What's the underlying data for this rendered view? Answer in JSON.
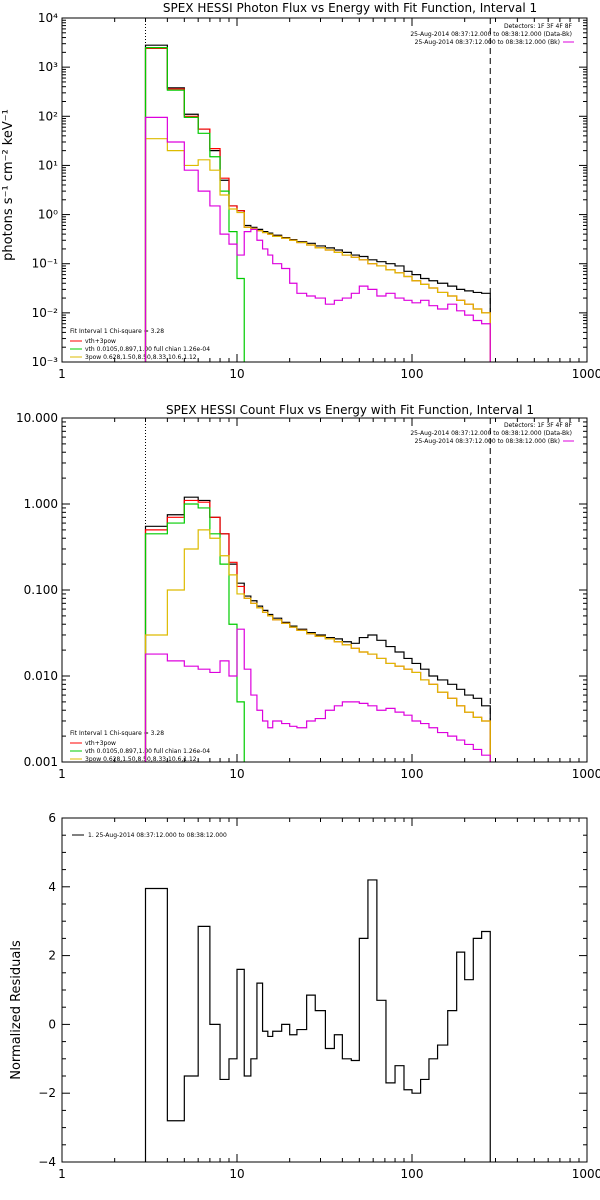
{
  "chart_data": [
    {
      "type": "line",
      "title": "SPEX HESSI Photon Flux vs Energy with Fit Function, Interval 1",
      "xlabel": "",
      "ylabel": "photons s⁻¹ cm⁻² keV⁻¹",
      "xscale": "log",
      "yscale": "log",
      "xlim": [
        1,
        1000
      ],
      "ylim": [
        0.001,
        10000
      ],
      "xticklabels": [
        "1",
        "10",
        "100",
        "1000"
      ],
      "yticklabels": [
        "10⁻³",
        "10⁻²",
        "10⁻¹",
        "10⁰",
        "10¹",
        "10²",
        "10³",
        "10⁴"
      ],
      "header": [
        "Detectors: 1F 3F 4F 8F",
        "25-Aug-2014 08:37:12.000 to 08:38:12.000 (Data-Bk)",
        "25-Aug-2014 08:37:12.000 to 08:38:12.000 (Bk)"
      ],
      "legend_title": "Fit Interval 1    Chi-square = 3.28",
      "legend": [
        "vth+3pow",
        "vth 0.0105,0.897,1.00  full chian 1.26e-04",
        "3pow 0.628,1.50,8.50,8.33,10.6,1.12"
      ],
      "range_markers": [
        3,
        280
      ],
      "edges": [
        3,
        4,
        5,
        6,
        7,
        8,
        9,
        10,
        11,
        12,
        13,
        14,
        15,
        16,
        18,
        20,
        22,
        25,
        28,
        32,
        36,
        40,
        45,
        50,
        56,
        63,
        71,
        80,
        90,
        100,
        112,
        125,
        140,
        160,
        180,
        200,
        224,
        250,
        280
      ],
      "series": [
        {
          "name": "data-bk",
          "color": "#000000",
          "values": [
            2800,
            380,
            110,
            55,
            20,
            5,
            1.5,
            1.2,
            0.6,
            0.55,
            0.5,
            0.45,
            0.42,
            0.38,
            0.34,
            0.31,
            0.28,
            0.26,
            0.23,
            0.21,
            0.19,
            0.17,
            0.15,
            0.14,
            0.12,
            0.11,
            0.1,
            0.09,
            0.07,
            0.06,
            0.05,
            0.045,
            0.04,
            0.035,
            0.03,
            0.028,
            0.026,
            0.025
          ]
        },
        {
          "name": "vth+3pow",
          "color": "#ff0000",
          "values": [
            2400,
            360,
            100,
            55,
            22,
            5.5,
            1.5,
            1.2,
            0.55,
            0.52,
            0.47,
            0.43,
            0.4,
            0.36,
            0.33,
            0.3,
            0.27,
            0.24,
            0.21,
            0.19,
            0.17,
            0.15,
            0.135,
            0.12,
            0.1,
            0.09,
            0.075,
            0.065,
            0.055,
            0.045,
            0.038,
            0.032,
            0.026,
            0.022,
            0.018,
            0.015,
            0.012,
            0.01
          ]
        },
        {
          "name": "vth",
          "color": "#00cc00",
          "values": [
            2500,
            340,
            95,
            45,
            15,
            3,
            0.45,
            0.05,
            0.0001
          ]
        },
        {
          "name": "3pow",
          "color": "#ddbb00",
          "values": [
            35,
            20,
            10,
            13,
            8,
            2.5,
            1.3,
            1.1,
            0.55,
            0.52,
            0.47,
            0.43,
            0.4,
            0.36,
            0.33,
            0.3,
            0.27,
            0.24,
            0.21,
            0.19,
            0.17,
            0.15,
            0.135,
            0.12,
            0.1,
            0.09,
            0.075,
            0.065,
            0.055,
            0.045,
            0.038,
            0.032,
            0.026,
            0.022,
            0.018,
            0.015,
            0.012,
            0.01
          ]
        },
        {
          "name": "bk",
          "color": "#dd00dd",
          "values": [
            95,
            30,
            8,
            3,
            1.5,
            0.4,
            0.25,
            0.15,
            0.45,
            0.5,
            0.3,
            0.2,
            0.15,
            0.1,
            0.08,
            0.04,
            0.025,
            0.022,
            0.02,
            0.015,
            0.018,
            0.02,
            0.025,
            0.035,
            0.03,
            0.022,
            0.025,
            0.02,
            0.018,
            0.016,
            0.018,
            0.014,
            0.012,
            0.015,
            0.011,
            0.009,
            0.007,
            0.006
          ]
        }
      ]
    },
    {
      "type": "line",
      "title": "SPEX HESSI Count Flux vs Energy with Fit Function, Interval 1",
      "xlabel": "",
      "ylabel": "",
      "xscale": "log",
      "yscale": "log",
      "xlim": [
        1,
        1000
      ],
      "ylim": [
        0.001,
        10
      ],
      "xticklabels": [
        "1",
        "10",
        "100",
        "1000"
      ],
      "yticklabels": [
        "0.001",
        "0.010",
        "0.100",
        "1.000",
        "10.000"
      ],
      "header": [
        "Detectors: 1F 3F 4F 8F",
        "25-Aug-2014 08:37:12.000 to 08:38:12.000 (Data-Bk)",
        "25-Aug-2014 08:37:12.000 to 08:38:12.000 (Bk)"
      ],
      "legend_title": "Fit Interval 1    Chi-square = 3.28",
      "legend": [
        "vth+3pow",
        "vth 0.0105,0.897,1.00  full chian 1.26e-04",
        "3pow 0.628,1.50,8.50,8.33,10.6,1.12"
      ],
      "range_markers": [
        3,
        280
      ],
      "edges": [
        3,
        4,
        5,
        6,
        7,
        8,
        9,
        10,
        11,
        12,
        13,
        14,
        15,
        16,
        18,
        20,
        22,
        25,
        28,
        32,
        36,
        40,
        45,
        50,
        56,
        63,
        71,
        80,
        90,
        100,
        112,
        125,
        140,
        160,
        180,
        200,
        224,
        250,
        280
      ],
      "series": [
        {
          "name": "data-bk",
          "color": "#000000",
          "values": [
            0.55,
            0.75,
            1.2,
            1.1,
            0.7,
            0.45,
            0.2,
            0.12,
            0.085,
            0.075,
            0.065,
            0.058,
            0.052,
            0.047,
            0.042,
            0.038,
            0.035,
            0.032,
            0.03,
            0.028,
            0.027,
            0.025,
            0.024,
            0.028,
            0.03,
            0.026,
            0.022,
            0.019,
            0.016,
            0.014,
            0.012,
            0.01,
            0.009,
            0.008,
            0.007,
            0.006,
            0.0055,
            0.0045
          ]
        },
        {
          "name": "vth+3pow",
          "color": "#ff0000",
          "values": [
            0.5,
            0.7,
            1.1,
            1.05,
            0.7,
            0.45,
            0.21,
            0.11,
            0.08,
            0.07,
            0.062,
            0.055,
            0.05,
            0.045,
            0.041,
            0.037,
            0.034,
            0.031,
            0.029,
            0.027,
            0.025,
            0.023,
            0.021,
            0.019,
            0.018,
            0.016,
            0.014,
            0.013,
            0.012,
            0.011,
            0.009,
            0.008,
            0.0065,
            0.0055,
            0.0045,
            0.0038,
            0.0033,
            0.003
          ]
        },
        {
          "name": "vth",
          "color": "#00cc00",
          "values": [
            0.45,
            0.6,
            1.0,
            0.9,
            0.45,
            0.2,
            0.04,
            0.005,
            0.0001
          ]
        },
        {
          "name": "3pow",
          "color": "#ddbb00",
          "values": [
            0.03,
            0.1,
            0.3,
            0.5,
            0.4,
            0.25,
            0.15,
            0.09,
            0.08,
            0.07,
            0.062,
            0.055,
            0.05,
            0.045,
            0.041,
            0.037,
            0.034,
            0.031,
            0.029,
            0.027,
            0.025,
            0.023,
            0.021,
            0.019,
            0.018,
            0.016,
            0.014,
            0.013,
            0.012,
            0.011,
            0.009,
            0.008,
            0.0065,
            0.0055,
            0.0045,
            0.0038,
            0.0033,
            0.003
          ]
        },
        {
          "name": "bk",
          "color": "#dd00dd",
          "values": [
            0.018,
            0.015,
            0.013,
            0.012,
            0.011,
            0.015,
            0.01,
            0.035,
            0.012,
            0.006,
            0.004,
            0.003,
            0.0025,
            0.003,
            0.0028,
            0.0026,
            0.0025,
            0.003,
            0.0032,
            0.004,
            0.0045,
            0.005,
            0.005,
            0.0048,
            0.0045,
            0.004,
            0.0042,
            0.0038,
            0.0035,
            0.003,
            0.0028,
            0.0025,
            0.0022,
            0.002,
            0.0018,
            0.0016,
            0.0014,
            0.0012
          ]
        }
      ]
    },
    {
      "type": "line",
      "title": "",
      "xlabel": "",
      "ylabel": "Normalized Residuals",
      "xscale": "log",
      "yscale": "linear",
      "xlim": [
        1,
        1000
      ],
      "ylim": [
        -4,
        6
      ],
      "xticklabels": [
        "1",
        "10",
        "100",
        "1000"
      ],
      "yticklabels": [
        "−4",
        "−2",
        "0",
        "2",
        "4",
        "6"
      ],
      "legend": [
        "1. 25-Aug-2014 08:37:12.000 to 08:38:12.000"
      ],
      "edges": [
        3,
        4,
        5,
        6,
        7,
        8,
        9,
        10,
        11,
        12,
        13,
        14,
        15,
        16,
        18,
        20,
        22,
        25,
        28,
        32,
        36,
        40,
        45,
        50,
        56,
        63,
        71,
        80,
        90,
        100,
        112,
        125,
        140,
        160,
        180,
        200,
        224,
        250,
        280
      ],
      "series": [
        {
          "name": "residuals",
          "color": "#000000",
          "values": [
            3.95,
            -2.8,
            -1.5,
            2.85,
            0.0,
            -1.6,
            -1.0,
            1.6,
            -1.5,
            -1.0,
            1.2,
            -0.2,
            -0.35,
            -0.2,
            0.0,
            -0.3,
            -0.15,
            0.85,
            0.4,
            -0.7,
            -0.3,
            -1.0,
            -1.05,
            2.5,
            4.2,
            0.7,
            -1.7,
            -1.2,
            -1.9,
            -2.0,
            -1.6,
            -1.0,
            -0.6,
            0.4,
            2.1,
            1.3,
            2.5,
            2.7
          ]
        }
      ]
    }
  ]
}
